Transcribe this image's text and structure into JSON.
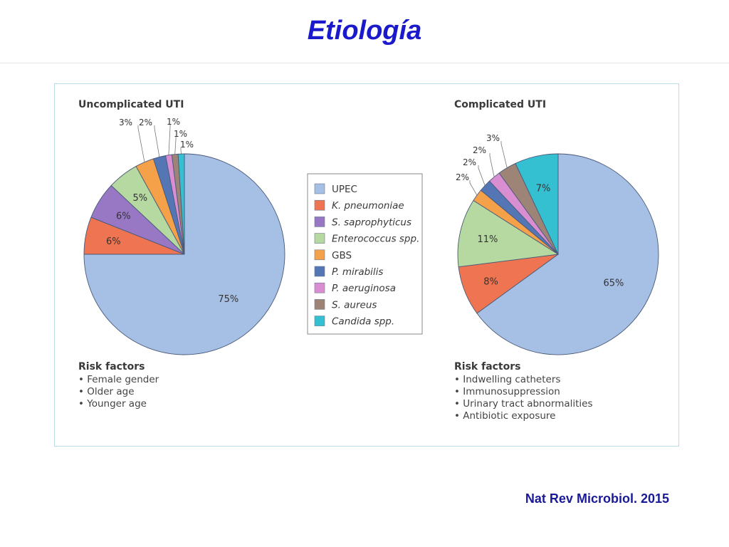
{
  "slide": {
    "title": "Etiología",
    "citation": "Nat Rev Microbiol. 2015"
  },
  "legend": {
    "items": [
      {
        "label": "UPEC",
        "color": "#a6bfe4",
        "italic": false
      },
      {
        "label": "K. pneumoniae",
        "color": "#ee7452",
        "italic": true
      },
      {
        "label": "S. saprophyticus",
        "color": "#9878c5",
        "italic": true
      },
      {
        "label": "Enterococcus spp.",
        "color": "#b5d9a1",
        "italic": true
      },
      {
        "label": "GBS",
        "color": "#f5a14a",
        "italic": false
      },
      {
        "label": "P. mirabilis",
        "color": "#5576b4",
        "italic": true
      },
      {
        "label": "P. aeruginosa",
        "color": "#d98ed2",
        "italic": true
      },
      {
        "label": "S. aureus",
        "color": "#9d8477",
        "italic": true
      },
      {
        "label": "Candida spp.",
        "color": "#35c0d1",
        "italic": true
      }
    ]
  },
  "chart_data": [
    {
      "type": "pie",
      "title": "Uncomplicated UTI",
      "categories": [
        "UPEC",
        "K. pneumoniae",
        "S. saprophyticus",
        "Enterococcus spp.",
        "GBS",
        "P. mirabilis",
        "P. aeruginosa",
        "S. aureus",
        "Candida spp."
      ],
      "values": [
        75,
        6,
        6,
        5,
        3,
        2,
        1,
        1,
        1
      ],
      "labels": [
        "75%",
        "6%",
        "6%",
        "5%",
        "3%",
        "2%",
        "1%",
        "1%",
        "1%"
      ],
      "risk_factors_title": "Risk factors",
      "risk_factors": [
        "• Female gender",
        "• Older age",
        "• Younger age"
      ]
    },
    {
      "type": "pie",
      "title": "Complicated UTI",
      "categories": [
        "UPEC",
        "K. pneumoniae",
        "Enterococcus spp.",
        "GBS",
        "P. mirabilis",
        "P. aeruginosa",
        "S. aureus",
        "Candida spp."
      ],
      "values": [
        65,
        8,
        11,
        2,
        2,
        2,
        3,
        7
      ],
      "labels": [
        "65%",
        "8%",
        "11%",
        "2%",
        "2%",
        "2%",
        "3%",
        "7%"
      ],
      "risk_factors_title": "Risk factors",
      "risk_factors": [
        "• Indwelling catheters",
        "• Immunosuppression",
        "• Urinary tract abnormalities",
        "• Antibiotic exposure"
      ]
    }
  ]
}
